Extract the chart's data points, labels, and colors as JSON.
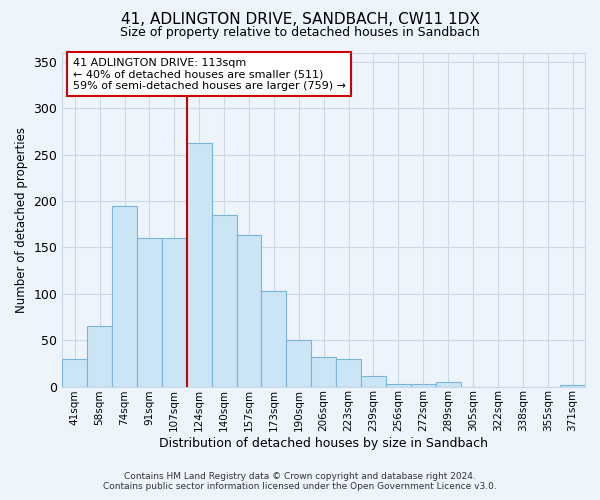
{
  "title": "41, ADLINGTON DRIVE, SANDBACH, CW11 1DX",
  "subtitle": "Size of property relative to detached houses in Sandbach",
  "xlabel": "Distribution of detached houses by size in Sandbach",
  "ylabel": "Number of detached properties",
  "bar_labels": [
    "41sqm",
    "58sqm",
    "74sqm",
    "91sqm",
    "107sqm",
    "124sqm",
    "140sqm",
    "157sqm",
    "173sqm",
    "190sqm",
    "206sqm",
    "223sqm",
    "239sqm",
    "256sqm",
    "272sqm",
    "289sqm",
    "305sqm",
    "322sqm",
    "338sqm",
    "355sqm",
    "371sqm"
  ],
  "bar_values": [
    30,
    65,
    195,
    160,
    160,
    262,
    185,
    163,
    103,
    50,
    32,
    30,
    11,
    3,
    3,
    5,
    0,
    0,
    0,
    0,
    2
  ],
  "bar_color": "#cce5f5",
  "bar_edge_color": "#7ab4d8",
  "vline_color": "#cc0000",
  "vline_position": 4.5,
  "annotation_text": "41 ADLINGTON DRIVE: 113sqm\n← 40% of detached houses are smaller (511)\n59% of semi-detached houses are larger (759) →",
  "annotation_box_color": "white",
  "annotation_box_edge_color": "#cc0000",
  "ylim": [
    0,
    360
  ],
  "yticks": [
    0,
    50,
    100,
    150,
    200,
    250,
    300,
    350
  ],
  "footer_line1": "Contains HM Land Registry data © Crown copyright and database right 2024.",
  "footer_line2": "Contains public sector information licensed under the Open Government Licence v3.0.",
  "background_color": "#eef4fc",
  "grid_color": "#c8d8e8"
}
